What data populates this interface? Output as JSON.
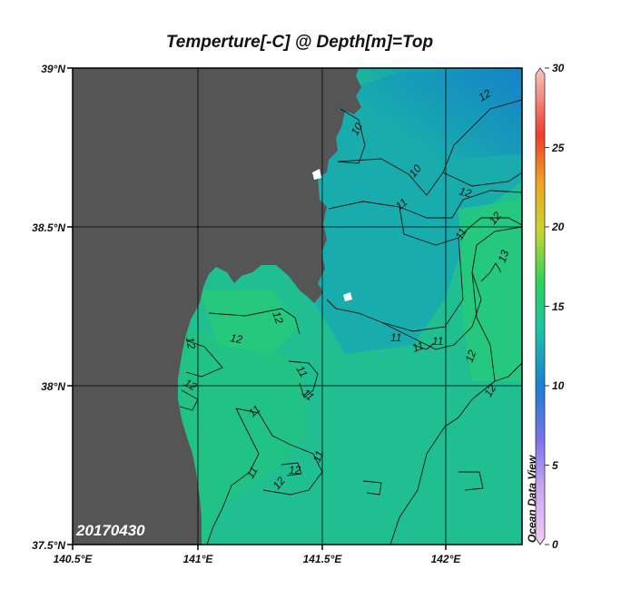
{
  "title": "Temperture[-C] @ Depth[m]=Top",
  "date_label": "20170430",
  "brand": "Ocean Data View",
  "lat_ticks": [
    "39°N",
    "38.5°N",
    "38°N",
    "37.5°N"
  ],
  "lon_ticks": [
    "140.5°E",
    "141°E",
    "141.5°E",
    "142°E"
  ],
  "colorbar": {
    "ticks": [
      "30",
      "25",
      "20",
      "15",
      "10",
      "5",
      "0"
    ],
    "min": 0,
    "max": 30
  },
  "contour_labels": [
    "10",
    "10",
    "11",
    "11",
    "11",
    "11",
    "11",
    "11",
    "11",
    "11",
    "11",
    "11",
    "12",
    "12",
    "12",
    "12",
    "12",
    "12",
    "12",
    "12",
    "12",
    "12",
    "12",
    "13"
  ],
  "colors": {
    "land": "#555555",
    "water_warm": "#22c98a",
    "water_mid": "#17b99e",
    "water_cool": "#1590c8",
    "grid": "#000000"
  }
}
